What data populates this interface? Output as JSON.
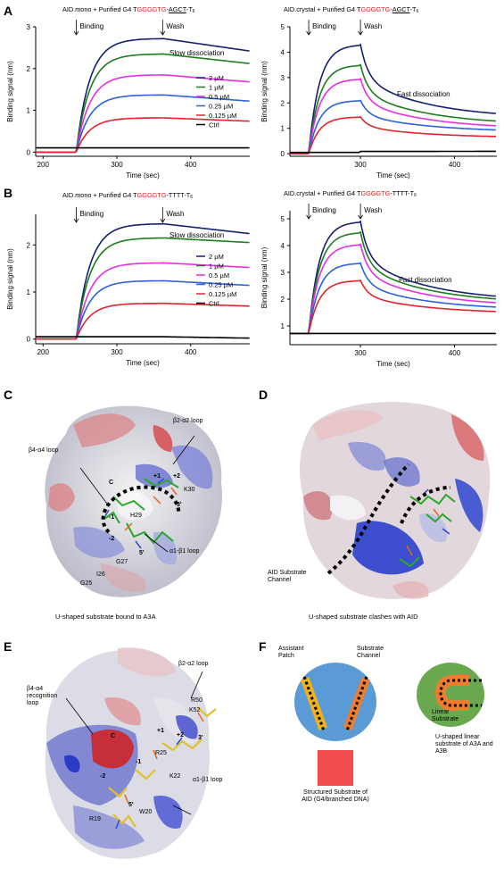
{
  "panels": {
    "A": "A",
    "B": "B",
    "C": "C",
    "D": "D",
    "E": "E",
    "F": "F"
  },
  "chart_titles": [
    {
      "pre": "AID.mono + Purified G4 T",
      "red": "GGGGTG",
      "dash": "-",
      "under": "AGCT",
      "post": "-T",
      "sub": "6"
    },
    {
      "pre": "AID.crystal + Purified G4 T",
      "red": "GGGGTG",
      "dash": "-",
      "under": "AGCT",
      "post": "-T",
      "sub": "6"
    },
    {
      "pre": "AID.mono + Purified G4 T",
      "red": "GGGGTG",
      "dash": "-",
      "under": "",
      "post": "TTTT-T",
      "sub": "6"
    },
    {
      "pre": "AID.crystal + Purified G4 T",
      "red": "GGGGTG",
      "dash": "-",
      "under": "",
      "post": "TTTT-T",
      "sub": "6"
    }
  ],
  "chart_data": [
    {
      "type": "line",
      "xlabel": "Time (sec)",
      "ylabel": "Binding signal (nm)",
      "xlim": [
        190,
        480
      ],
      "ylim": [
        -0.1,
        3.0
      ],
      "xticks": [
        200,
        300,
        400
      ],
      "yticks": [
        0,
        1,
        2,
        3
      ],
      "annotations": {
        "binding": "Binding",
        "wash": "Wash",
        "dissociation": "Slow dissociation"
      },
      "binding_t": 245,
      "wash_t": 362,
      "legend": [
        "2 µM",
        "1 µM",
        "0.5 µM",
        "0.25 µM",
        "0.125 µM",
        "Ctrl"
      ],
      "series": [
        {
          "name": "2 µM",
          "color": "#14206e",
          "plateau": 2.72,
          "end": 2.42
        },
        {
          "name": "1 µM",
          "color": "#1d7d1d",
          "plateau": 2.35,
          "end": 2.12
        },
        {
          "name": "0.5 µM",
          "color": "#e52ee5",
          "plateau": 1.85,
          "end": 1.68
        },
        {
          "name": "0.25 µM",
          "color": "#2b62d8",
          "plateau": 1.37,
          "end": 1.22
        },
        {
          "name": "0.125 µM",
          "color": "#e3232b",
          "plateau": 0.82,
          "end": 0.74
        },
        {
          "name": "Ctrl",
          "color": "#000000",
          "plateau": 0.1,
          "end": 0.1
        }
      ]
    },
    {
      "type": "line",
      "xlabel": "Time (sec)",
      "ylabel": "Binding signal (nm)",
      "xlim": [
        225,
        445
      ],
      "ylim": [
        -0.1,
        5.0
      ],
      "xticks": [
        300,
        400
      ],
      "yticks": [
        0,
        1,
        2,
        3,
        4,
        5
      ],
      "annotations": {
        "binding": "Binding",
        "wash": "Wash",
        "dissociation": "Fast dissociation"
      },
      "binding_t": 245,
      "wash_t": 300,
      "series": [
        {
          "name": "2 µM",
          "color": "#14206e",
          "plateau": 4.3,
          "end": 1.38
        },
        {
          "name": "1 µM",
          "color": "#1d7d1d",
          "plateau": 3.5,
          "end": 1.12
        },
        {
          "name": "0.5 µM",
          "color": "#e52ee5",
          "plateau": 2.95,
          "end": 0.96
        },
        {
          "name": "0.25 µM",
          "color": "#2b62d8",
          "plateau": 2.1,
          "end": 0.85
        },
        {
          "name": "0.125 µM",
          "color": "#e3232b",
          "plateau": 1.45,
          "end": 0.62
        },
        {
          "name": "Ctrl",
          "color": "#000000",
          "plateau": 0.05,
          "end": 0.1
        }
      ]
    },
    {
      "type": "line",
      "xlabel": "Time (sec)",
      "ylabel": "Binding signal (nm)",
      "xlim": [
        190,
        480
      ],
      "ylim": [
        -0.1,
        2.65
      ],
      "xticks": [
        200,
        300,
        400
      ],
      "yticks": [
        0,
        1,
        2
      ],
      "annotations": {
        "binding": "Binding",
        "wash": "Wash",
        "dissociation": "Slow dissociation"
      },
      "binding_t": 245,
      "wash_t": 362,
      "legend": [
        "2 µM",
        "1 µM",
        "0.5 µM",
        "0.25 µM",
        "0.125 µM",
        "Ctrl"
      ],
      "series": [
        {
          "name": "2 µM",
          "color": "#14206e",
          "plateau": 2.45,
          "end": 2.24
        },
        {
          "name": "1 µM",
          "color": "#1d7d1d",
          "plateau": 2.15,
          "end": 2.05
        },
        {
          "name": "0.5 µM",
          "color": "#e52ee5",
          "plateau": 1.62,
          "end": 1.52
        },
        {
          "name": "0.25 µM",
          "color": "#2b62d8",
          "plateau": 1.24,
          "end": 1.14
        },
        {
          "name": "0.125 µM",
          "color": "#e3232b",
          "plateau": 0.76,
          "end": 0.7
        },
        {
          "name": "Ctrl",
          "color": "#000000",
          "plateau": 0.05,
          "end": 0.02
        }
      ]
    },
    {
      "type": "line",
      "xlabel": "Time (sec)",
      "ylabel": "Binding signal (nm)",
      "xlim": [
        225,
        445
      ],
      "ylim": [
        0.3,
        5.3
      ],
      "xticks": [
        300,
        400
      ],
      "yticks": [
        1,
        2,
        3,
        4,
        5
      ],
      "annotations": {
        "binding": "Binding",
        "wash": "Wash",
        "dissociation": "Fast dissociation"
      },
      "binding_t": 245,
      "wash_t": 300,
      "series": [
        {
          "name": "2 µM",
          "color": "#14206e",
          "plateau": 4.9,
          "end": 1.9
        },
        {
          "name": "1 µM",
          "color": "#1d7d1d",
          "plateau": 4.5,
          "end": 1.82
        },
        {
          "name": "0.5 µM",
          "color": "#e52ee5",
          "plateau": 4.05,
          "end": 1.7
        },
        {
          "name": "0.25 µM",
          "color": "#2b62d8",
          "plateau": 3.35,
          "end": 1.58
        },
        {
          "name": "0.125 µM",
          "color": "#e3232b",
          "plateau": 2.7,
          "end": 1.45
        },
        {
          "name": "Ctrl",
          "color": "#000000",
          "plateau": 0.72,
          "end": 0.72
        }
      ]
    }
  ],
  "panel_c": {
    "caption": "U-shaped substrate bound to A3A",
    "labels": {
      "b2a2": "β2-α2 loop",
      "b4a4": "β4-α4 loop",
      "a1b1": "α1-β1 loop",
      "c": "C",
      "p1": "+1",
      "p2": "+2",
      "k30": "K30",
      "three": "3'",
      "h29": "H29",
      "m1": "-1",
      "m2": "-2",
      "five": "5'",
      "g27": "G27",
      "i26": "I26",
      "g25": "G25"
    }
  },
  "panel_d": {
    "caption": "U-shaped substrate clashes with AID",
    "labels": {
      "channel": "AID Substrate Channel"
    }
  },
  "panel_e": {
    "labels": {
      "b2a2": "β2-α2 loop",
      "b4a4": "β4-α4 recognition loop",
      "r50": "R50",
      "k52": "K52",
      "c": "C",
      "p2": "+2",
      "three": "3'",
      "p1": "+1",
      "r25": "R25",
      "m1": "-1",
      "m2": "-2",
      "k22": "K22",
      "a1b1": "α1-β1 loop",
      "r19": "R19",
      "five": "5'",
      "w20": "W20"
    }
  },
  "panel_f": {
    "labels": {
      "assistant": "Assistant Patch",
      "channel": "Substrate Channel",
      "structured": "Structured Substrate of AID (G4/branched DNA)",
      "linear": "Linear Substrate",
      "ushaped": "U-shaped linear substrate of A3A and A3B"
    }
  }
}
